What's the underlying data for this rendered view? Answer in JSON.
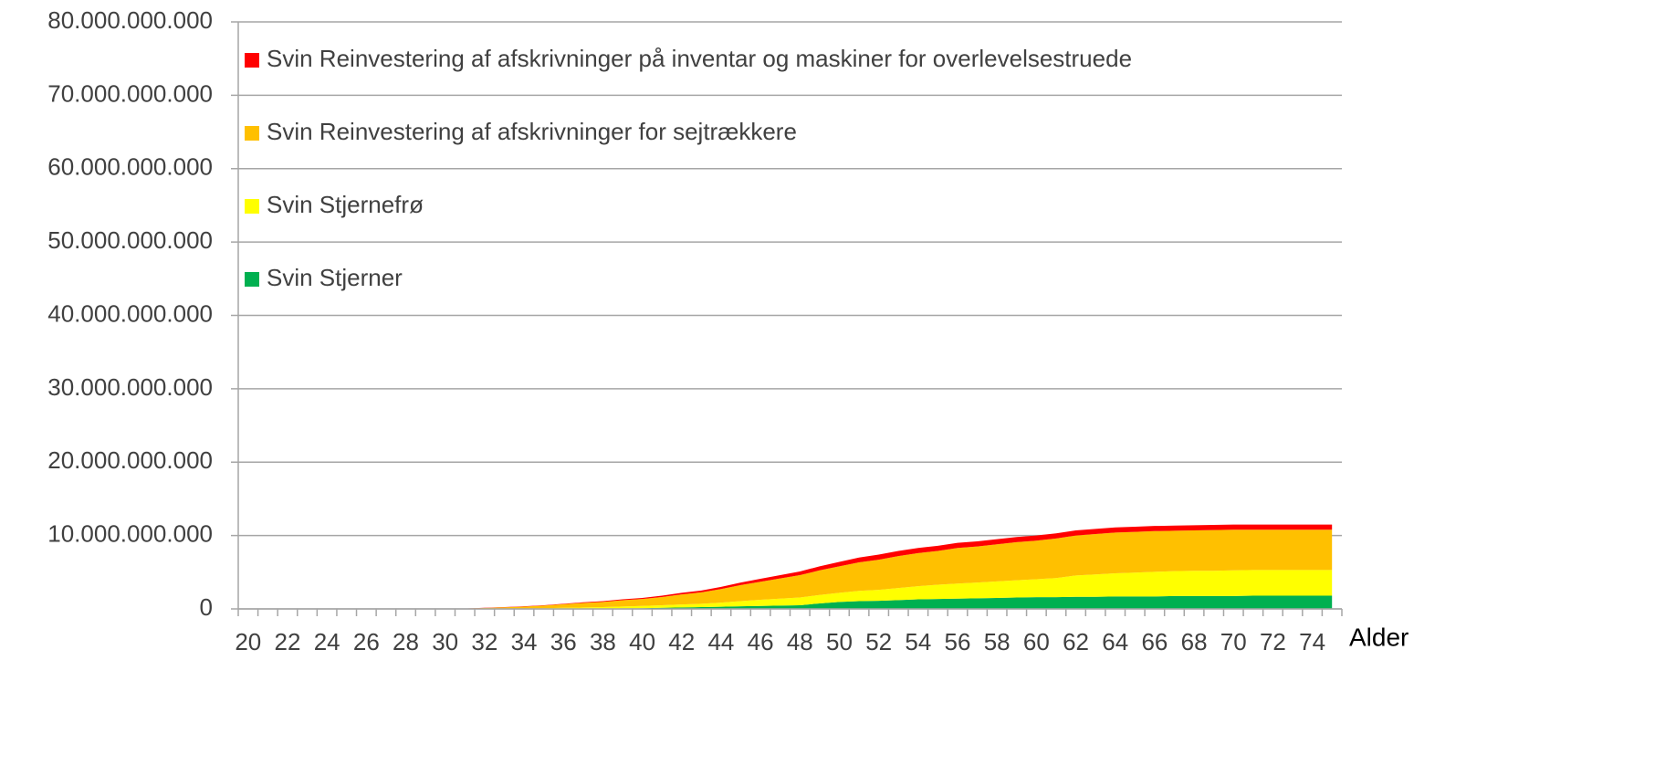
{
  "chart_data": {
    "type": "stacked_area",
    "x_label": "Alder",
    "categories": [
      20,
      null,
      22,
      null,
      24,
      null,
      26,
      null,
      28,
      null,
      30,
      null,
      32,
      null,
      34,
      null,
      36,
      null,
      38,
      null,
      40,
      null,
      42,
      null,
      44,
      null,
      46,
      null,
      48,
      null,
      50,
      null,
      52,
      null,
      54,
      null,
      56,
      null,
      58,
      null,
      60,
      null,
      62,
      null,
      64,
      null,
      66,
      null,
      68,
      null,
      70,
      null,
      72,
      null,
      74,
      null
    ],
    "series": [
      {
        "name": "Svin Stjerner",
        "color": "#00b050",
        "values": [
          0,
          0,
          0,
          0,
          0,
          0,
          0,
          0,
          0,
          0,
          0,
          0,
          0,
          0,
          0,
          0,
          20000000,
          30000000,
          50000000,
          70000000,
          100000000,
          150000000,
          200000000,
          250000000,
          300000000,
          350000000,
          400000000,
          450000000,
          500000000,
          750000000,
          950000000,
          1050000000,
          1100000000,
          1200000000,
          1300000000,
          1350000000,
          1400000000,
          1450000000,
          1500000000,
          1550000000,
          1600000000,
          1600000000,
          1650000000,
          1650000000,
          1700000000,
          1700000000,
          1700000000,
          1750000000,
          1750000000,
          1750000000,
          1750000000,
          1800000000,
          1800000000,
          1800000000,
          1800000000,
          1800000000
        ]
      },
      {
        "name": "Svin Stjernefrø",
        "color": "#ffff00",
        "values": [
          0,
          0,
          0,
          0,
          0,
          0,
          0,
          0,
          0,
          0,
          0,
          0,
          20000000,
          40000000,
          60000000,
          100000000,
          130000000,
          170000000,
          200000000,
          250000000,
          300000000,
          350000000,
          400000000,
          450000000,
          550000000,
          700000000,
          850000000,
          950000000,
          1050000000,
          1150000000,
          1250000000,
          1400000000,
          1500000000,
          1650000000,
          1800000000,
          1950000000,
          2050000000,
          2150000000,
          2250000000,
          2350000000,
          2450000000,
          2600000000,
          2900000000,
          3050000000,
          3150000000,
          3250000000,
          3350000000,
          3400000000,
          3450000000,
          3450000000,
          3500000000,
          3500000000,
          3500000000,
          3500000000,
          3500000000,
          3500000000
        ]
      },
      {
        "name": "Svin Reinvestering af afskrivninger for sejtrækkere",
        "color": "#ffc000",
        "values": [
          0,
          0,
          0,
          0,
          0,
          0,
          0,
          0,
          0,
          0,
          0,
          40000000,
          110000000,
          180000000,
          250000000,
          350000000,
          480000000,
          610000000,
          700000000,
          860000000,
          950000000,
          1120000000,
          1380000000,
          1550000000,
          1850000000,
          2200000000,
          2450000000,
          2750000000,
          3050000000,
          3350000000,
          3600000000,
          3900000000,
          4100000000,
          4350000000,
          4500000000,
          4600000000,
          4850000000,
          4900000000,
          5050000000,
          5200000000,
          5250000000,
          5400000000,
          5450000000,
          5500000000,
          5550000000,
          5550000000,
          5550000000,
          5500000000,
          5500000000,
          5550000000,
          5550000000,
          5500000000,
          5500000000,
          5500000000,
          5500000000,
          5500000000
        ]
      },
      {
        "name": "Svin Reinvestering af afskrivninger på inventar og maskiner for overlevelsestruede",
        "color": "#ff0000",
        "values": [
          0,
          0,
          0,
          0,
          0,
          0,
          0,
          0,
          0,
          0,
          0,
          10000000,
          20000000,
          30000000,
          40000000,
          50000000,
          70000000,
          90000000,
          100000000,
          120000000,
          150000000,
          180000000,
          220000000,
          250000000,
          300000000,
          350000000,
          400000000,
          450000000,
          500000000,
          550000000,
          600000000,
          650000000,
          700000000,
          700000000,
          700000000,
          700000000,
          700000000,
          700000000,
          700000000,
          700000000,
          700000000,
          700000000,
          700000000,
          700000000,
          700000000,
          700000000,
          700000000,
          700000000,
          700000000,
          700000000,
          700000000,
          700000000,
          700000000,
          700000000,
          700000000,
          700000000
        ]
      }
    ],
    "ylim": [
      0,
      80000000000
    ],
    "yticks": [
      0,
      {
        "value": 10000000000,
        "label": "10.000.000.000"
      },
      {
        "value": 20000000000,
        "label": "20.000.000.000"
      },
      {
        "value": 30000000000,
        "label": "30.000.000.000"
      },
      {
        "value": 40000000000,
        "label": "40.000.000.000"
      },
      {
        "value": 50000000000,
        "label": "50.000.000.000"
      },
      {
        "value": 60000000000,
        "label": "60.000.000.000"
      },
      {
        "value": 70000000000,
        "label": "70.000.000.000"
      },
      {
        "value": 80000000000,
        "label": "80.000.000.000"
      }
    ],
    "grid": true,
    "legend": "top-left"
  }
}
